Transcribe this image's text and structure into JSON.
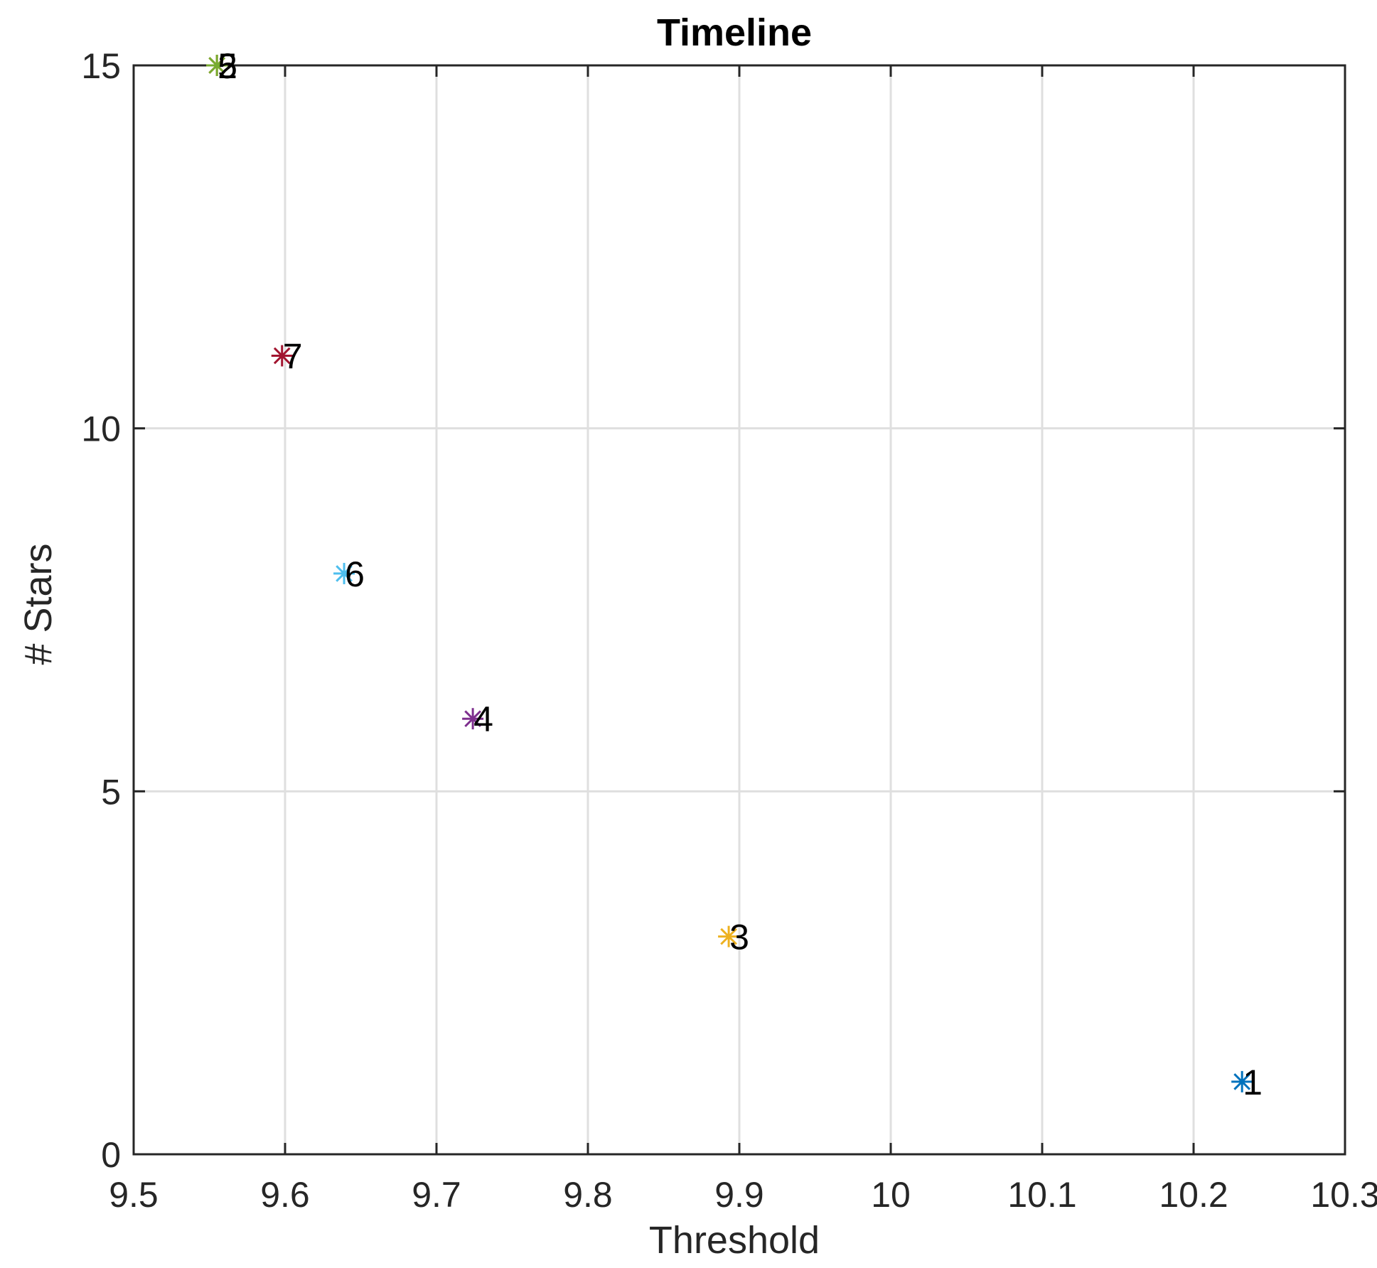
{
  "chart_data": {
    "type": "scatter",
    "title": "Timeline",
    "xlabel": "Threshold",
    "ylabel": "# Stars",
    "xlim": [
      9.5,
      10.3
    ],
    "ylim": [
      0,
      15
    ],
    "xticks": [
      "9.5",
      "9.6",
      "9.7",
      "9.8",
      "9.9",
      "10",
      "10.1",
      "10.2",
      "10.3"
    ],
    "yticks": [
      "0",
      "5",
      "10",
      "15"
    ],
    "grid": true,
    "marker": "asterisk",
    "points": [
      {
        "label": "1",
        "x": 10.232,
        "y": 1,
        "color": "#0072BD"
      },
      {
        "label": "2",
        "x": 9.555,
        "y": 15,
        "color": "#D95319"
      },
      {
        "label": "3",
        "x": 9.893,
        "y": 3,
        "color": "#EDB120"
      },
      {
        "label": "4",
        "x": 9.724,
        "y": 6,
        "color": "#7E2F8E"
      },
      {
        "label": "5",
        "x": 9.555,
        "y": 15,
        "color": "#77AC30"
      },
      {
        "label": "6",
        "x": 9.639,
        "y": 8,
        "color": "#4DBEEE"
      },
      {
        "label": "7",
        "x": 9.598,
        "y": 11,
        "color": "#A2142F"
      }
    ]
  }
}
